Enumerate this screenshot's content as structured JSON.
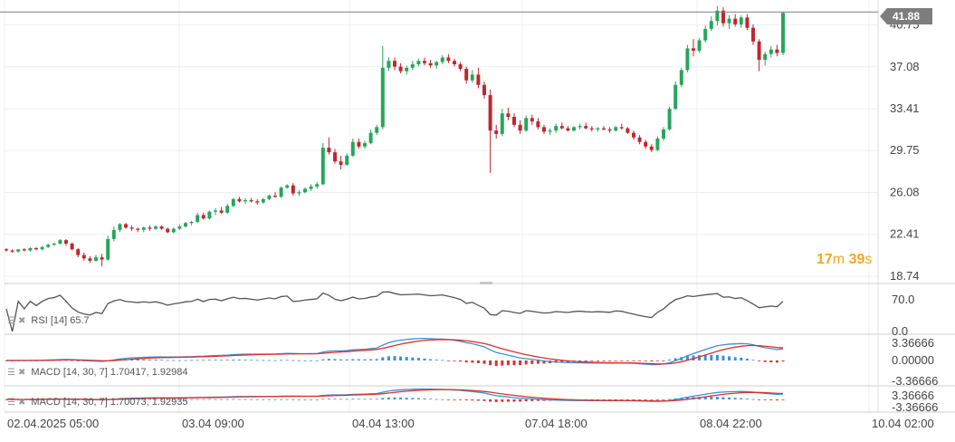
{
  "countdown": {
    "minutes": "17",
    "m_unit": "m",
    "seconds": "39",
    "s_unit": "s"
  },
  "current_price": "41.88",
  "indicators": {
    "rsi_label": "RSI [14] 65.7",
    "macd1_label": "MACD [14, 30, 7] 1.70417,  1.92984",
    "macd2_label": "MACD [14, 30, 7] 1.70073,  1.92935"
  },
  "colors": {
    "up": "#26a65b",
    "down": "#c0262d",
    "rsi": "#555555",
    "macd": "#3d8fd9",
    "signal": "#d9322e",
    "grid": "#efefef",
    "current": "#7d7d7d",
    "countdown": "#f5a623"
  },
  "chart_data": [
    {
      "type": "candlestick",
      "title": "",
      "y_ticks": [
        "40.75",
        "37.08",
        "33.41",
        "29.75",
        "26.08",
        "22.41",
        "18.74"
      ],
      "ylim": [
        18.74,
        42.3
      ],
      "x_tick_labels": [
        "02.04.2025  05:00",
        "03.04  09:00",
        "04.04  13:00",
        "07.04  18:00",
        "08.04  22:00",
        "10.04  02:00"
      ],
      "current_price": 41.88,
      "candles": [
        [
          21.1,
          21.2,
          20.9,
          21.0
        ],
        [
          21.0,
          21.1,
          20.8,
          20.9
        ],
        [
          20.9,
          21.1,
          20.8,
          21.1
        ],
        [
          21.1,
          21.2,
          20.9,
          21.0
        ],
        [
          21.0,
          21.3,
          20.9,
          21.2
        ],
        [
          21.2,
          21.3,
          21.0,
          21.1
        ],
        [
          21.1,
          21.4,
          21.0,
          21.3
        ],
        [
          21.3,
          21.6,
          21.2,
          21.5
        ],
        [
          21.5,
          21.7,
          21.4,
          21.6
        ],
        [
          21.6,
          22.0,
          21.5,
          21.9
        ],
        [
          21.9,
          22.0,
          21.4,
          21.6
        ],
        [
          21.6,
          21.7,
          21.0,
          21.1
        ],
        [
          21.1,
          21.2,
          20.4,
          20.6
        ],
        [
          20.6,
          20.8,
          20.1,
          20.3
        ],
        [
          20.3,
          20.5,
          19.9,
          20.1
        ],
        [
          20.1,
          20.6,
          20.0,
          20.4
        ],
        [
          20.4,
          20.7,
          19.6,
          20.2
        ],
        [
          20.2,
          22.3,
          20.1,
          22.0
        ],
        [
          22.0,
          23.1,
          21.8,
          22.8
        ],
        [
          22.8,
          23.4,
          22.6,
          23.3
        ],
        [
          23.3,
          23.4,
          22.9,
          23.0
        ],
        [
          23.0,
          23.2,
          22.7,
          22.9
        ],
        [
          22.9,
          23.0,
          22.6,
          22.8
        ],
        [
          22.8,
          23.1,
          22.6,
          23.0
        ],
        [
          23.0,
          23.2,
          22.7,
          22.9
        ],
        [
          22.9,
          23.2,
          22.8,
          23.1
        ],
        [
          23.1,
          23.2,
          22.8,
          22.9
        ],
        [
          22.9,
          23.0,
          22.5,
          22.6
        ],
        [
          22.6,
          23.0,
          22.5,
          22.9
        ],
        [
          22.9,
          23.3,
          22.8,
          23.1
        ],
        [
          23.1,
          23.5,
          23.0,
          23.4
        ],
        [
          23.4,
          23.6,
          23.2,
          23.5
        ],
        [
          23.5,
          24.3,
          23.4,
          24.1
        ],
        [
          24.1,
          24.3,
          23.7,
          23.8
        ],
        [
          23.8,
          24.5,
          23.7,
          24.4
        ],
        [
          24.4,
          24.7,
          24.1,
          24.5
        ],
        [
          24.5,
          24.8,
          24.2,
          24.3
        ],
        [
          24.3,
          25.1,
          24.2,
          24.9
        ],
        [
          24.9,
          25.6,
          24.8,
          25.5
        ],
        [
          25.5,
          25.7,
          25.2,
          25.3
        ],
        [
          25.3,
          25.6,
          25.1,
          25.4
        ],
        [
          25.4,
          25.6,
          25.2,
          25.3
        ],
        [
          25.3,
          25.5,
          25.0,
          25.2
        ],
        [
          25.2,
          25.6,
          25.1,
          25.5
        ],
        [
          25.5,
          25.9,
          25.4,
          25.8
        ],
        [
          25.8,
          26.1,
          25.6,
          25.7
        ],
        [
          25.7,
          26.6,
          25.6,
          26.5
        ],
        [
          26.5,
          26.8,
          26.4,
          26.7
        ],
        [
          26.7,
          26.9,
          25.8,
          26.0
        ],
        [
          26.0,
          26.3,
          25.8,
          26.1
        ],
        [
          26.1,
          26.5,
          26.0,
          26.4
        ],
        [
          26.4,
          26.8,
          26.2,
          26.6
        ],
        [
          26.6,
          27.0,
          26.4,
          26.8
        ],
        [
          26.8,
          30.4,
          26.7,
          30.0
        ],
        [
          30.0,
          30.9,
          29.4,
          29.6
        ],
        [
          29.6,
          29.9,
          28.6,
          28.8
        ],
        [
          28.8,
          29.3,
          28.1,
          28.5
        ],
        [
          28.5,
          29.5,
          28.4,
          29.3
        ],
        [
          29.3,
          30.8,
          29.2,
          30.5
        ],
        [
          30.5,
          30.8,
          29.9,
          30.1
        ],
        [
          30.1,
          30.6,
          29.9,
          30.4
        ],
        [
          30.4,
          31.6,
          30.3,
          31.3
        ],
        [
          31.3,
          32.0,
          31.1,
          31.8
        ],
        [
          31.8,
          38.9,
          31.6,
          37.0
        ],
        [
          37.0,
          37.9,
          36.7,
          37.6
        ],
        [
          37.6,
          37.9,
          36.8,
          37.1
        ],
        [
          37.1,
          37.4,
          36.5,
          36.7
        ],
        [
          36.7,
          37.2,
          36.4,
          37.0
        ],
        [
          37.0,
          37.6,
          36.8,
          37.3
        ],
        [
          37.3,
          37.8,
          37.1,
          37.6
        ],
        [
          37.6,
          37.9,
          37.2,
          37.4
        ],
        [
          37.4,
          37.7,
          37.0,
          37.2
        ],
        [
          37.2,
          37.6,
          36.9,
          37.5
        ],
        [
          37.5,
          38.1,
          37.3,
          37.9
        ],
        [
          37.9,
          38.2,
          37.4,
          37.6
        ],
        [
          37.6,
          37.8,
          37.1,
          37.3
        ],
        [
          37.3,
          37.5,
          36.7,
          36.9
        ],
        [
          36.9,
          37.1,
          35.6,
          35.9
        ],
        [
          35.9,
          36.8,
          35.7,
          36.4
        ],
        [
          36.4,
          37.0,
          35.2,
          35.5
        ],
        [
          35.5,
          35.8,
          34.3,
          34.6
        ],
        [
          34.6,
          35.1,
          27.8,
          31.5
        ],
        [
          31.5,
          32.0,
          30.8,
          31.2
        ],
        [
          31.2,
          33.4,
          31.0,
          33.0
        ],
        [
          33.0,
          33.5,
          32.4,
          32.7
        ],
        [
          32.7,
          33.0,
          31.8,
          32.0
        ],
        [
          32.0,
          32.4,
          31.2,
          31.5
        ],
        [
          31.5,
          32.8,
          31.4,
          32.6
        ],
        [
          32.6,
          32.9,
          32.0,
          32.3
        ],
        [
          32.3,
          32.6,
          31.6,
          31.8
        ],
        [
          31.8,
          32.0,
          31.2,
          31.4
        ],
        [
          31.4,
          31.7,
          31.1,
          31.5
        ],
        [
          31.5,
          32.1,
          31.3,
          31.9
        ],
        [
          31.9,
          32.2,
          31.6,
          31.7
        ],
        [
          31.7,
          31.9,
          31.4,
          31.5
        ],
        [
          31.5,
          31.9,
          31.4,
          31.8
        ],
        [
          31.8,
          32.1,
          31.6,
          31.9
        ],
        [
          31.9,
          32.2,
          31.6,
          31.7
        ],
        [
          31.7,
          31.9,
          31.4,
          31.6
        ],
        [
          31.6,
          31.8,
          31.4,
          31.7
        ],
        [
          31.7,
          31.9,
          31.5,
          31.6
        ],
        [
          31.6,
          31.8,
          31.3,
          31.5
        ],
        [
          31.5,
          31.9,
          31.4,
          31.8
        ],
        [
          31.8,
          32.1,
          31.6,
          31.7
        ],
        [
          31.7,
          31.8,
          31.2,
          31.3
        ],
        [
          31.3,
          31.5,
          30.7,
          30.9
        ],
        [
          30.9,
          31.1,
          30.3,
          30.5
        ],
        [
          30.5,
          30.7,
          29.9,
          30.1
        ],
        [
          30.1,
          30.3,
          29.6,
          29.8
        ],
        [
          29.8,
          31.0,
          29.7,
          30.8
        ],
        [
          30.8,
          31.8,
          30.6,
          31.6
        ],
        [
          31.6,
          33.6,
          31.5,
          33.4
        ],
        [
          33.4,
          35.8,
          33.3,
          35.5
        ],
        [
          35.5,
          37.0,
          35.3,
          36.8
        ],
        [
          36.8,
          39.0,
          36.6,
          38.7
        ],
        [
          38.7,
          39.5,
          38.0,
          38.5
        ],
        [
          38.5,
          39.6,
          38.3,
          39.4
        ],
        [
          39.4,
          40.7,
          39.2,
          40.4
        ],
        [
          40.4,
          41.5,
          40.2,
          41.1
        ],
        [
          41.1,
          42.4,
          40.7,
          42.0
        ],
        [
          42.0,
          42.3,
          40.6,
          40.9
        ],
        [
          40.9,
          41.6,
          40.4,
          41.3
        ],
        [
          41.3,
          41.7,
          40.6,
          40.8
        ],
        [
          40.8,
          41.6,
          40.5,
          41.4
        ],
        [
          41.4,
          41.7,
          40.3,
          40.5
        ],
        [
          40.5,
          40.8,
          39.0,
          39.3
        ],
        [
          39.3,
          39.5,
          36.7,
          37.7
        ],
        [
          37.7,
          38.4,
          37.2,
          38.2
        ],
        [
          38.2,
          38.9,
          37.9,
          38.6
        ],
        [
          38.6,
          39.0,
          38.0,
          38.3
        ],
        [
          38.3,
          41.9,
          38.1,
          41.8
        ]
      ]
    },
    {
      "type": "line",
      "name": "RSI [14]",
      "y_ticks": [
        "70.0",
        "0.0"
      ],
      "ylim": [
        0,
        100
      ],
      "last_value": 65.7
    },
    {
      "type": "macd",
      "name": "MACD [14, 30, 7]",
      "y_ticks": [
        "3.36666",
        "0.00000",
        "-3.36666"
      ],
      "ylim": [
        -3.36666,
        3.36666
      ],
      "macd_last": 1.70417,
      "signal_last": 1.92984
    },
    {
      "type": "macd",
      "name": "MACD [14, 30, 7]",
      "y_ticks": [
        "3.36666",
        "-3.36666"
      ],
      "ylim": [
        -3.36666,
        3.36666
      ],
      "macd_last": 1.70073,
      "signal_last": 1.92935
    }
  ]
}
